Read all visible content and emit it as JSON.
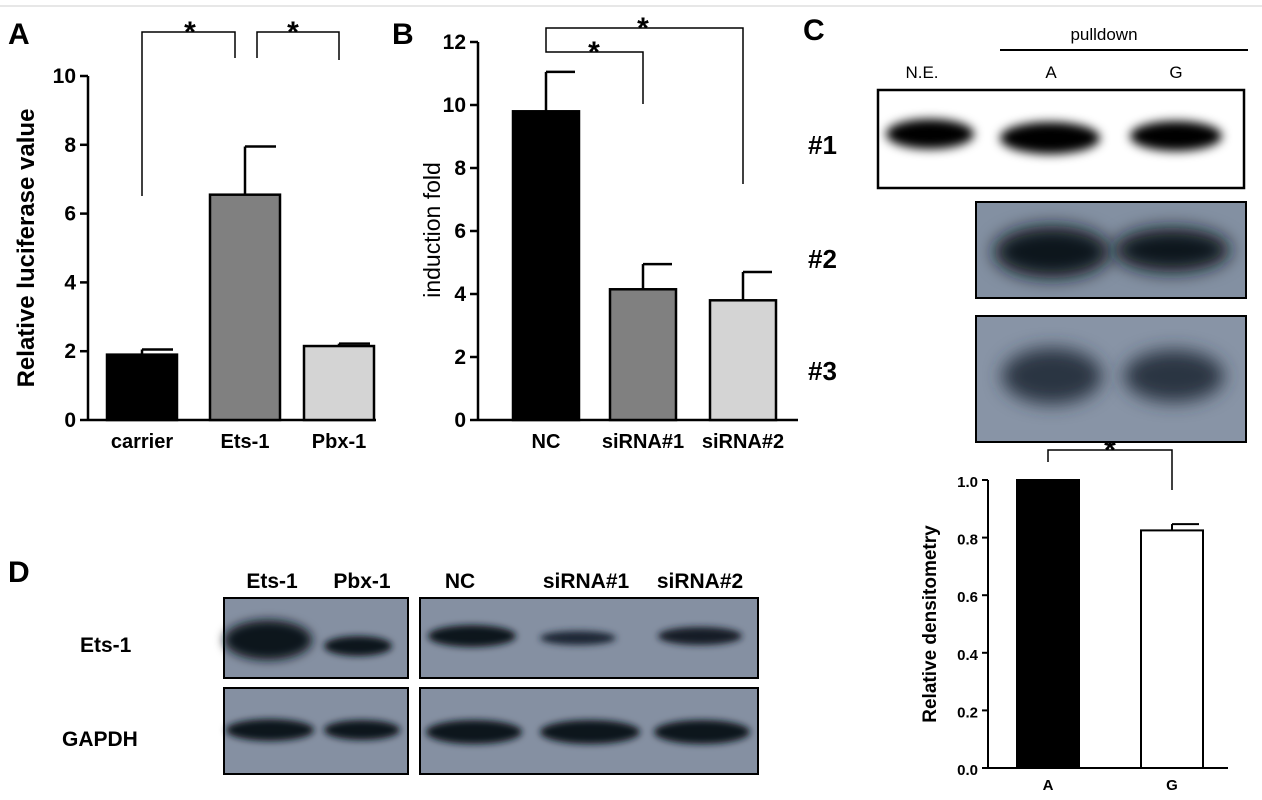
{
  "chart_data": [
    {
      "panel": "A",
      "type": "bar",
      "categories": [
        "carrier",
        "Ets-1",
        "Pbx-1"
      ],
      "values": [
        1.9,
        6.55,
        2.15
      ],
      "errors": [
        0.15,
        1.4,
        0.07
      ],
      "colors": [
        "#000000",
        "#808080",
        "#d4d4d4"
      ],
      "ylabel": "Relative luciferase value",
      "ylim": [
        0,
        10
      ],
      "yticks": [
        "0",
        "2",
        "4",
        "6",
        "8",
        "10"
      ],
      "significance": [
        "*",
        "*"
      ]
    },
    {
      "panel": "B",
      "type": "bar",
      "categories": [
        "NC",
        "siRNA#1",
        "siRNA#2"
      ],
      "values": [
        9.8,
        4.15,
        3.8
      ],
      "errors": [
        1.25,
        0.8,
        0.9
      ],
      "colors": [
        "#000000",
        "#808080",
        "#d4d4d4"
      ],
      "ylabel": "induction fold",
      "ylim": [
        0,
        12
      ],
      "yticks": [
        "0",
        "2",
        "4",
        "6",
        "8",
        "10",
        "12"
      ],
      "significance": [
        "*",
        "*"
      ]
    },
    {
      "panel": "C-inset",
      "type": "bar",
      "categories": [
        "A",
        "G"
      ],
      "values": [
        1.0,
        0.825
      ],
      "errors": [
        0,
        0.022
      ],
      "colors": [
        "#000000",
        "#ffffff"
      ],
      "ylabel": "Relative densitometry",
      "ylim": [
        0,
        1.0
      ],
      "yticks": [
        "0.0",
        "0.2",
        "0.4",
        "0.6",
        "0.8",
        "1.0"
      ],
      "significance": [
        "*"
      ]
    }
  ],
  "blots": {
    "panel_c": {
      "letter": "C",
      "header": "pulldown",
      "lanes": [
        "N.E.",
        "A",
        "G"
      ],
      "rows": [
        "#1",
        "#2",
        "#3"
      ]
    },
    "panel_d": {
      "letter": "D",
      "lanes_left": [
        "Ets-1",
        "Pbx-1"
      ],
      "lanes_right": [
        "NC",
        "siRNA#1",
        "siRNA#2"
      ],
      "rows": [
        "Ets-1",
        "GAPDH"
      ]
    }
  },
  "letters": {
    "a": "A",
    "b": "B"
  },
  "colors": {
    "blot_bg": "#8894a3",
    "band": "#0f1620"
  }
}
